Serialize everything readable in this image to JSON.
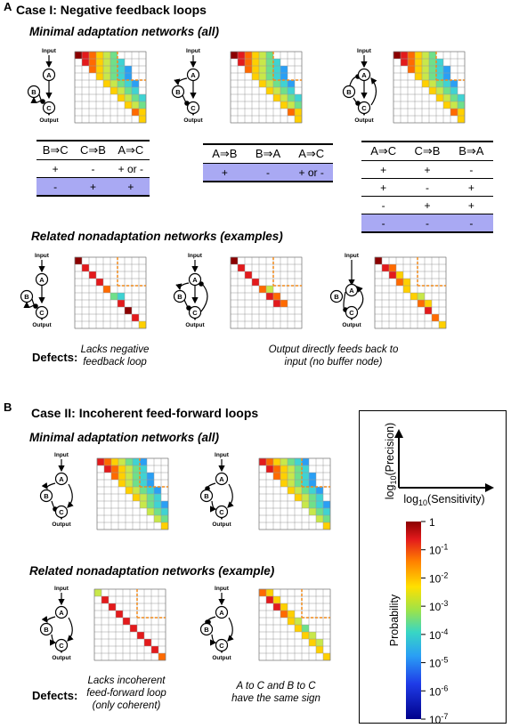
{
  "panels": {
    "a": {
      "letter": "A",
      "title": "Case I: Negative feedback loops",
      "minimal_title_prefix": "Minimal adaptation networks (",
      "minimal_title_em": "all",
      "minimal_title_suffix": ")",
      "tables": [
        {
          "header": [
            "B⇒C",
            "C⇒B",
            "A⇒C"
          ],
          "rows": [
            [
              "+",
              "-",
              "+ or -"
            ]
          ],
          "highlight_row": [
            "-",
            "+",
            "+"
          ]
        },
        {
          "header": [
            "A⇒B",
            "B⇒A",
            "A⇒C"
          ],
          "rows": [],
          "highlight_row": [
            "+",
            "-",
            "+ or -"
          ]
        },
        {
          "header": [
            "A⇒C",
            "C⇒B",
            "B⇒A"
          ],
          "rows": [
            [
              "+",
              "+",
              "-"
            ],
            [
              "+",
              "-",
              "+"
            ],
            [
              "-",
              "+",
              "+"
            ]
          ],
          "highlight_row": [
            "-",
            "-",
            "-"
          ]
        }
      ],
      "related_title": "Related nonadaptation networks (examples)",
      "defects_label": "Defects:",
      "defects": [
        "Lacks negative\nfeedback loop",
        "Output directly feeds back to\ninput (no buffer node)"
      ]
    },
    "b": {
      "letter": "B",
      "title": "Case II: Incoherent feed-forward loops",
      "minimal_title_prefix": "Minimal adaptation networks (",
      "minimal_title_em": "all",
      "minimal_title_suffix": ")",
      "related_title": "Related nonadaptation networks (example)",
      "defects_label": "Defects:",
      "defects": [
        "Lacks incoherent\nfeed-forward loop\n(only coherent)",
        "A to C and B to C\nhave the same sign"
      ]
    }
  },
  "nodes": {
    "input": "Input",
    "output": "Output",
    "a": "A",
    "b": "B",
    "c": "C"
  },
  "legend": {
    "y_axis": "log10(Precision)",
    "x_axis": "log10(Sensitivity)",
    "colorbar_label": "Probability",
    "ticks": [
      "1",
      "10-1",
      "10-2",
      "10-3",
      "10-4",
      "10-5",
      "10-6",
      "10-7"
    ],
    "colors": {
      "high": "#8b0000",
      "low": "#00008b"
    }
  }
}
